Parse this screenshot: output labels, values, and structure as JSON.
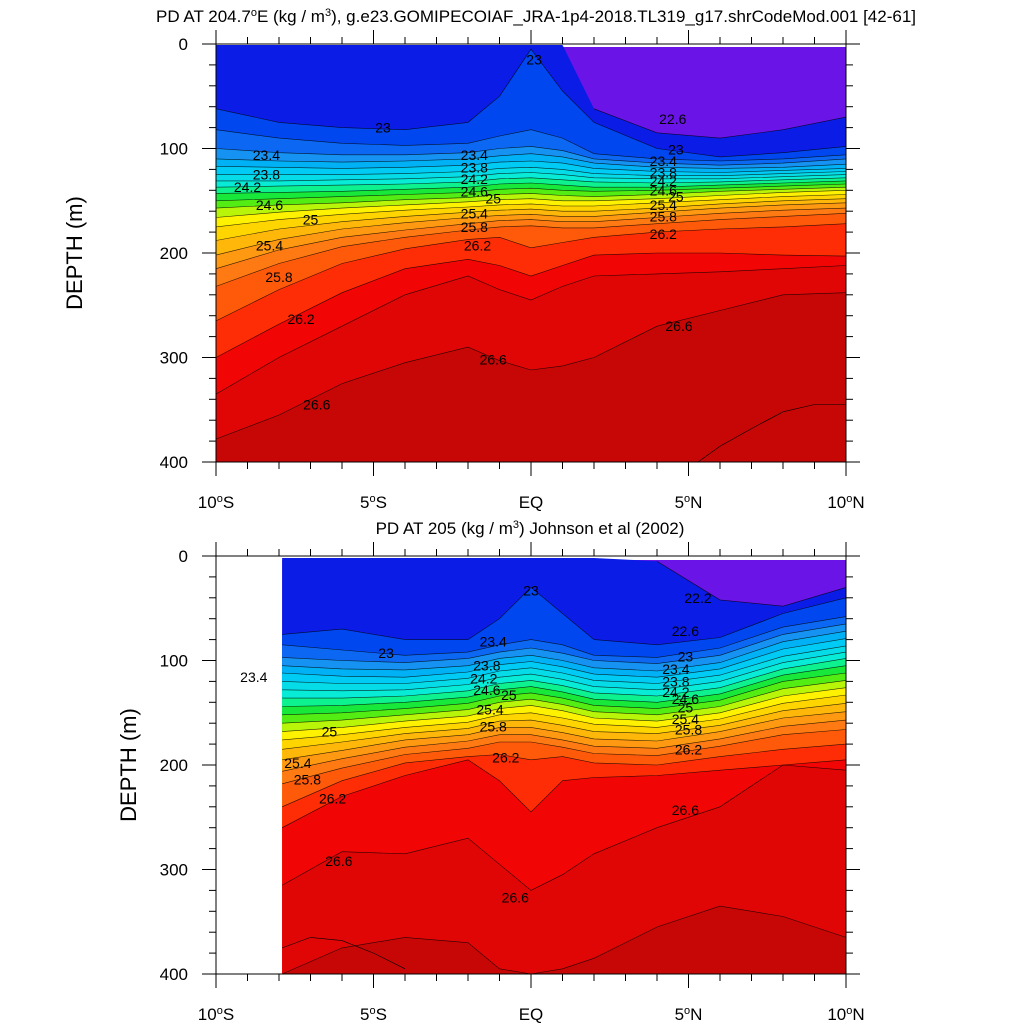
{
  "chart_data": [
    {
      "type": "contour",
      "title_main": "PD AT 204.7",
      "title_sup1": "o",
      "title_mid": "E (kg / m",
      "title_sup2": "3",
      "title_end": "), g.e23.GOMIPECOIAF_JRA-1p4-2018.TL319_g17.shrCodeMod.001 [42-61]",
      "ylabel": "DEPTH (m)",
      "xlim": [
        -10,
        10
      ],
      "ylim": [
        0,
        400
      ],
      "yticks": [
        "0",
        "100",
        "200",
        "300",
        "400"
      ],
      "xticks": [
        {
          "num": "10",
          "deg": "o",
          "hem": "S"
        },
        {
          "num": "5",
          "deg": "o",
          "hem": "S"
        },
        {
          "num": "EQ",
          "deg": "",
          "hem": ""
        },
        {
          "num": "5",
          "deg": "o",
          "hem": "N"
        },
        {
          "num": "10",
          "deg": "o",
          "hem": "N"
        }
      ],
      "data_xrange": [
        -10,
        10
      ],
      "levels": [
        22.2,
        22.6,
        23,
        23.2,
        23.4,
        23.6,
        23.8,
        24,
        24.2,
        24.4,
        24.6,
        24.8,
        25,
        25.2,
        25.4,
        25.6,
        25.8,
        26,
        26.2,
        26.4,
        26.6,
        26.8
      ],
      "contours": {
        "x": [
          -10,
          -8,
          -6,
          -4,
          -2,
          -1,
          0,
          1,
          2,
          4,
          6,
          8,
          10
        ],
        "depths": [
          [
            null,
            null,
            null,
            null,
            null,
            null,
            null,
            null,
            62,
            85,
            90,
            82,
            70
          ],
          [
            62,
            75,
            80,
            82,
            75,
            50,
            5,
            45,
            75,
            100,
            108,
            104,
            98
          ],
          [
            82,
            90,
            95,
            97,
            95,
            88,
            82,
            90,
            105,
            110,
            112,
            110,
            106
          ],
          [
            100,
            104,
            106,
            106,
            104,
            100,
            98,
            102,
            110,
            114,
            116,
            114,
            110
          ],
          [
            110,
            112,
            113,
            112,
            110,
            107,
            105,
            108,
            114,
            118,
            119,
            118,
            115
          ],
          [
            117,
            118,
            119,
            118,
            116,
            113,
            112,
            114,
            119,
            122,
            123,
            121,
            119
          ],
          [
            125,
            125,
            125,
            124,
            122,
            119,
            118,
            120,
            124,
            126,
            126,
            124,
            122
          ],
          [
            131,
            131,
            130,
            129,
            127,
            124,
            123,
            125,
            128,
            129,
            129,
            127,
            125
          ],
          [
            137,
            136,
            135,
            134,
            132,
            129,
            128,
            130,
            132,
            133,
            132,
            130,
            128
          ],
          [
            143,
            142,
            141,
            139,
            137,
            134,
            133,
            135,
            137,
            137,
            135,
            133,
            131
          ],
          [
            150,
            148,
            146,
            144,
            142,
            139,
            138,
            140,
            141,
            140,
            138,
            136,
            134
          ],
          [
            157,
            154,
            152,
            149,
            147,
            144,
            143,
            145,
            146,
            144,
            141,
            139,
            137
          ],
          [
            166,
            161,
            157,
            154,
            151,
            149,
            148,
            150,
            150,
            148,
            145,
            142,
            140
          ],
          [
            175,
            168,
            163,
            159,
            156,
            154,
            153,
            155,
            155,
            152,
            149,
            146,
            144
          ],
          [
            188,
            177,
            170,
            165,
            161,
            159,
            158,
            160,
            160,
            157,
            153,
            150,
            148
          ],
          [
            202,
            187,
            177,
            171,
            166,
            164,
            163,
            165,
            165,
            161,
            157,
            154,
            152
          ],
          [
            215,
            197,
            185,
            178,
            172,
            169,
            168,
            170,
            170,
            166,
            162,
            159,
            157
          ],
          [
            232,
            210,
            194,
            185,
            178,
            175,
            174,
            176,
            176,
            172,
            168,
            165,
            162
          ],
          [
            265,
            235,
            210,
            196,
            187,
            185,
            195,
            190,
            185,
            180,
            177,
            175,
            172
          ],
          [
            300,
            268,
            238,
            215,
            206,
            212,
            222,
            212,
            202,
            200,
            200,
            202,
            203
          ],
          [
            335,
            300,
            270,
            240,
            222,
            235,
            245,
            232,
            222,
            220,
            218,
            215,
            212
          ],
          [
            378,
            355,
            325,
            305,
            290,
            303,
            312,
            308,
            300,
            270,
            255,
            240,
            238
          ]
        ],
        "bottom_line": {
          "x": [
            5.3,
            6,
            7,
            8,
            9,
            10
          ],
          "depth": [
            400,
            385,
            368,
            352,
            345,
            345
          ]
        }
      },
      "labels": [
        {
          "text": "23",
          "x": -4.7,
          "depth": 80
        },
        {
          "text": "23",
          "x": 0.1,
          "depth": 15
        },
        {
          "text": "22.6",
          "x": 4.5,
          "depth": 72
        },
        {
          "text": "23.4",
          "x": -8.4,
          "depth": 106
        },
        {
          "text": "23.8",
          "x": -8.4,
          "depth": 125
        },
        {
          "text": "24.2",
          "x": -9.0,
          "depth": 137
        },
        {
          "text": "24.6",
          "x": -8.3,
          "depth": 154
        },
        {
          "text": "25",
          "x": -7.0,
          "depth": 168
        },
        {
          "text": "25.4",
          "x": -8.3,
          "depth": 193
        },
        {
          "text": "25.8",
          "x": -8.0,
          "depth": 223
        },
        {
          "text": "26.2",
          "x": -7.3,
          "depth": 263
        },
        {
          "text": "26.6",
          "x": -6.8,
          "depth": 345
        },
        {
          "text": "23.4",
          "x": -1.8,
          "depth": 106
        },
        {
          "text": "23.8",
          "x": -1.8,
          "depth": 118
        },
        {
          "text": "24.2",
          "x": -1.8,
          "depth": 129
        },
        {
          "text": "24.6",
          "x": -1.8,
          "depth": 141
        },
        {
          "text": "25",
          "x": -1.2,
          "depth": 148
        },
        {
          "text": "25.4",
          "x": -1.8,
          "depth": 162
        },
        {
          "text": "25.8",
          "x": -1.8,
          "depth": 175
        },
        {
          "text": "26.2",
          "x": -1.7,
          "depth": 193
        },
        {
          "text": "26.6",
          "x": -1.2,
          "depth": 302
        },
        {
          "text": "23",
          "x": 4.6,
          "depth": 101
        },
        {
          "text": "23.4",
          "x": 4.2,
          "depth": 112
        },
        {
          "text": "23.8",
          "x": 4.2,
          "depth": 123
        },
        {
          "text": "24.2",
          "x": 4.2,
          "depth": 131
        },
        {
          "text": "24.6",
          "x": 4.2,
          "depth": 140
        },
        {
          "text": "25",
          "x": 4.6,
          "depth": 146
        },
        {
          "text": "25.4",
          "x": 4.2,
          "depth": 154
        },
        {
          "text": "25.8",
          "x": 4.2,
          "depth": 165
        },
        {
          "text": "26.2",
          "x": 4.2,
          "depth": 182
        },
        {
          "text": "26.6",
          "x": 4.7,
          "depth": 270
        }
      ]
    },
    {
      "type": "contour",
      "title_main": "PD AT 205 (kg / m",
      "title_sup1": "3",
      "title_end": ") Johnson et al (2002)",
      "ylabel": "DEPTH (m)",
      "xlim": [
        -10,
        10
      ],
      "ylim": [
        0,
        400
      ],
      "yticks": [
        "0",
        "100",
        "200",
        "300",
        "400"
      ],
      "xticks": [
        {
          "num": "10",
          "deg": "o",
          "hem": "S"
        },
        {
          "num": "5",
          "deg": "o",
          "hem": "S"
        },
        {
          "num": "EQ",
          "deg": "",
          "hem": ""
        },
        {
          "num": "5",
          "deg": "o",
          "hem": "N"
        },
        {
          "num": "10",
          "deg": "o",
          "hem": "N"
        }
      ],
      "data_xrange": [
        -7.9,
        10
      ],
      "levels": [
        22.2,
        22.6,
        23,
        23.2,
        23.4,
        23.6,
        23.8,
        24,
        24.2,
        24.4,
        24.6,
        24.8,
        25,
        25.2,
        25.4,
        25.6,
        25.8,
        26,
        26.2,
        26.4,
        26.6,
        26.8
      ],
      "contours": {
        "x": [
          -7.9,
          -6,
          -4,
          -2,
          -1,
          0,
          1,
          2,
          4,
          6,
          8,
          10
        ],
        "depths": [
          [
            null,
            null,
            null,
            null,
            null,
            null,
            null,
            null,
            5,
            42,
            48,
            30
          ],
          [
            75,
            70,
            80,
            80,
            60,
            30,
            55,
            80,
            85,
            78,
            55,
            40
          ],
          [
            85,
            90,
            95,
            92,
            85,
            80,
            85,
            95,
            97,
            88,
            68,
            58
          ],
          [
            97,
            100,
            102,
            98,
            92,
            88,
            93,
            100,
            103,
            95,
            75,
            65
          ],
          [
            105,
            108,
            109,
            105,
            98,
            95,
            100,
            107,
            110,
            102,
            82,
            72
          ],
          [
            112,
            115,
            116,
            111,
            104,
            101,
            106,
            113,
            116,
            108,
            89,
            79
          ],
          [
            120,
            122,
            122,
            117,
            110,
            107,
            112,
            119,
            122,
            114,
            96,
            86
          ],
          [
            128,
            129,
            128,
            123,
            116,
            113,
            118,
            125,
            128,
            120,
            102,
            92
          ],
          [
            136,
            136,
            134,
            129,
            122,
            119,
            124,
            131,
            134,
            126,
            108,
            98
          ],
          [
            144,
            143,
            140,
            135,
            128,
            125,
            130,
            137,
            140,
            132,
            114,
            105
          ],
          [
            152,
            150,
            146,
            141,
            134,
            131,
            136,
            143,
            146,
            138,
            120,
            112
          ],
          [
            160,
            157,
            152,
            147,
            140,
            137,
            142,
            149,
            152,
            144,
            127,
            119
          ],
          [
            168,
            164,
            158,
            153,
            146,
            143,
            148,
            155,
            158,
            150,
            134,
            126
          ],
          [
            176,
            171,
            164,
            159,
            152,
            150,
            155,
            161,
            164,
            156,
            141,
            133
          ],
          [
            185,
            178,
            170,
            165,
            158,
            157,
            162,
            168,
            170,
            162,
            148,
            141
          ],
          [
            195,
            186,
            176,
            171,
            164,
            164,
            169,
            175,
            177,
            168,
            155,
            149
          ],
          [
            206,
            194,
            183,
            177,
            171,
            171,
            176,
            182,
            184,
            175,
            163,
            157
          ],
          [
            218,
            203,
            190,
            184,
            178,
            178,
            183,
            189,
            191,
            182,
            171,
            166
          ],
          [
            240,
            215,
            198,
            192,
            190,
            195,
            192,
            198,
            200,
            192,
            185,
            180
          ],
          [
            260,
            230,
            210,
            195,
            215,
            245,
            215,
            212,
            210,
            205,
            200,
            195
          ],
          [
            315,
            283,
            285,
            270,
            295,
            320,
            305,
            285,
            260,
            240,
            200,
            205
          ],
          [
            400,
            375,
            365,
            370,
            395,
            400,
            395,
            385,
            355,
            335,
            345,
            365
          ]
        ],
        "bottom_line": {
          "x": [
            -7.9,
            -7,
            -6,
            -5,
            -4
          ],
          "depth": [
            375,
            365,
            368,
            380,
            395
          ]
        }
      },
      "labels": [
        {
          "text": "22.2",
          "x": 5.3,
          "depth": 40
        },
        {
          "text": "22.6",
          "x": 4.9,
          "depth": 72
        },
        {
          "text": "23",
          "x": -4.6,
          "depth": 93
        },
        {
          "text": "23",
          "x": 0,
          "depth": 33
        },
        {
          "text": "23",
          "x": 4.9,
          "depth": 96
        },
        {
          "text": "23.4",
          "x": -8.8,
          "depth": 116
        },
        {
          "text": "25",
          "x": -6.4,
          "depth": 168
        },
        {
          "text": "25.4",
          "x": -7.4,
          "depth": 198
        },
        {
          "text": "25.8",
          "x": -7.1,
          "depth": 214
        },
        {
          "text": "26.2",
          "x": -6.3,
          "depth": 232
        },
        {
          "text": "26.6",
          "x": -6.1,
          "depth": 292
        },
        {
          "text": "23.4",
          "x": -1.2,
          "depth": 82
        },
        {
          "text": "23.8",
          "x": -1.4,
          "depth": 105
        },
        {
          "text": "24.2",
          "x": -1.5,
          "depth": 117
        },
        {
          "text": "24.6",
          "x": -1.4,
          "depth": 128
        },
        {
          "text": "25",
          "x": -0.7,
          "depth": 133
        },
        {
          "text": "25.4",
          "x": -1.3,
          "depth": 147
        },
        {
          "text": "25.8",
          "x": -1.2,
          "depth": 163
        },
        {
          "text": "26.2",
          "x": -0.8,
          "depth": 193
        },
        {
          "text": "26.6",
          "x": -0.5,
          "depth": 327
        },
        {
          "text": "23.4",
          "x": 4.6,
          "depth": 108
        },
        {
          "text": "23.8",
          "x": 4.6,
          "depth": 120
        },
        {
          "text": "24.2",
          "x": 4.6,
          "depth": 130
        },
        {
          "text": "24.6",
          "x": 4.9,
          "depth": 137
        },
        {
          "text": "25",
          "x": 4.9,
          "depth": 145
        },
        {
          "text": "25.4",
          "x": 4.9,
          "depth": 156
        },
        {
          "text": "25.8",
          "x": 5.0,
          "depth": 166
        },
        {
          "text": "26.2",
          "x": 5.0,
          "depth": 185
        },
        {
          "text": "26.6",
          "x": 4.9,
          "depth": 243
        }
      ]
    }
  ],
  "colors": {
    "colormap": [
      "#6b14e8",
      "#0a1ce6",
      "#0047f0",
      "#0c68f2",
      "#1592f2",
      "#00b1f5",
      "#00cbf5",
      "#05dce8",
      "#08ebd6",
      "#0df28f",
      "#18e83a",
      "#54ed13",
      "#b8f508",
      "#fff200",
      "#ffd500",
      "#ffb80a",
      "#ff9912",
      "#ff7a12",
      "#ff5a0a",
      "#ff2d05",
      "#f20505",
      "#e00606",
      "#c70606"
    ],
    "grid_line": "#000000"
  }
}
